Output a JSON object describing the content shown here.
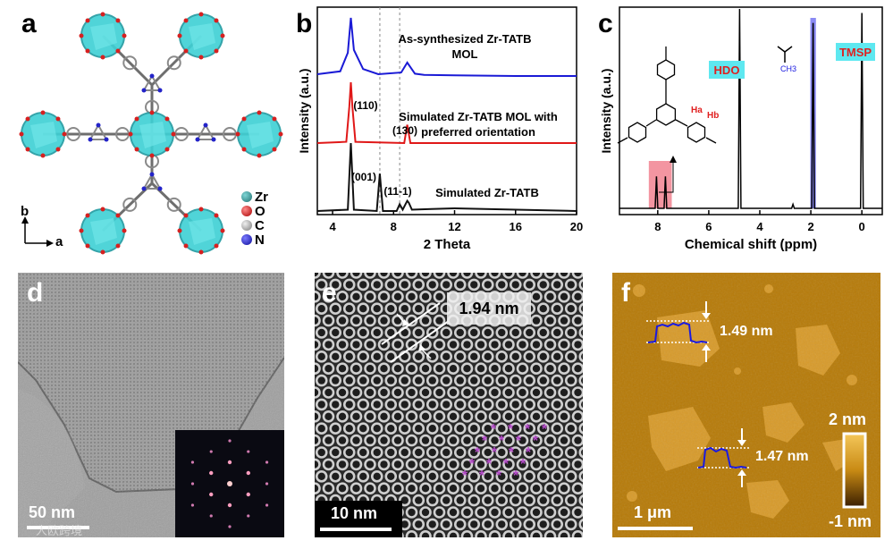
{
  "panels": {
    "a": {
      "label": "a",
      "legend": [
        {
          "sym": "Zr",
          "color": "#1f8c8c"
        },
        {
          "sym": "O",
          "color": "#d62020"
        },
        {
          "sym": "C",
          "color": "#a8a8a8"
        },
        {
          "sym": "N",
          "color": "#2323c8"
        }
      ],
      "axis_b": "b",
      "axis_a": "a"
    },
    "b": {
      "label": "b",
      "annotations": [
        "(110)",
        "(130)",
        "(001)",
        "(11-1)"
      ]
    },
    "c": {
      "label": "c",
      "hdo_label": "HDO",
      "tmsp_label": "TMSP",
      "ha_label": "Ha",
      "hb_label": "Hb"
    },
    "d": {
      "label": "d",
      "scale_label": "50 nm",
      "watermark": "人欧跨境"
    },
    "e": {
      "label": "e",
      "spacing_label": "1.94 nm",
      "scale_label": "10 nm"
    },
    "f": {
      "label": "f",
      "height1": "1.49 nm",
      "height2": "1.47 nm",
      "colorbar_top": "2 nm",
      "colorbar_bottom": "-1 nm",
      "scale_label": "1 μm"
    }
  },
  "chart_data": [
    {
      "type": "line",
      "panel": "b",
      "xlabel": "2 Theta",
      "ylabel": "Intensity (a.u.)",
      "xlim": [
        3,
        20
      ],
      "xticks": [
        4,
        8,
        12,
        16,
        20
      ],
      "series": [
        {
          "name": "As-synthesized Zr-TATB MOL",
          "color": "#1a1ad6",
          "x": [
            3,
            4.5,
            5.0,
            5.2,
            5.4,
            6,
            7,
            8.5,
            8.9,
            9.4,
            10,
            12,
            16,
            20
          ],
          "y": [
            0.03,
            0.08,
            0.4,
            1.0,
            0.45,
            0.12,
            0.03,
            0.06,
            0.23,
            0.04,
            0.02,
            0.01,
            0.0,
            0.0
          ]
        },
        {
          "name": "Simulated Zr-TATB MOL with preferred orientation",
          "color": "#e01818",
          "x": [
            3,
            4.9,
            5.1,
            5.2,
            5.3,
            5.5,
            8.7,
            8.9,
            9.1,
            20
          ],
          "y": [
            0.0,
            0.02,
            0.6,
            1.0,
            0.6,
            0.02,
            0.0,
            0.3,
            0.0,
            0.0
          ]
        },
        {
          "name": "Simulated Zr-TATB",
          "color": "#111111",
          "x": [
            3,
            5.0,
            5.2,
            5.4,
            6.9,
            7.1,
            7.3,
            8.2,
            8.4,
            8.6,
            8.9,
            9.0,
            9.2,
            10.5,
            12,
            14,
            20
          ],
          "y": [
            0.0,
            0.02,
            1.0,
            0.02,
            0.0,
            0.55,
            0.0,
            0.0,
            0.1,
            0.02,
            0.15,
            0.12,
            0.02,
            0.03,
            0.04,
            0.03,
            0.0
          ]
        }
      ],
      "annotations": [
        {
          "text": "(110)",
          "x": 5.3
        },
        {
          "text": "(130)",
          "x": 9.0
        },
        {
          "text": "(001)",
          "x": 7.1
        },
        {
          "text": "(11-1)",
          "x": 8.8
        }
      ],
      "reference_lines": [
        7.1,
        8.4
      ]
    },
    {
      "type": "line",
      "panel": "c",
      "xlabel": "Chemical shift (ppm)",
      "ylabel": "Intensity (a.u.)",
      "xlim": [
        9.5,
        -0.8
      ],
      "xticks": [
        8,
        6,
        4,
        2,
        0
      ],
      "peaks": [
        {
          "shift": 8.05,
          "h": 0.16
        },
        {
          "shift": 7.7,
          "h": 0.16
        },
        {
          "shift": 4.79,
          "h": 1.0
        },
        {
          "shift": 1.91,
          "h": 0.93
        },
        {
          "shift": 2.7,
          "h": 0.02
        },
        {
          "shift": 0.0,
          "h": 0.98
        }
      ],
      "highlights": [
        {
          "from": 8.35,
          "to": 7.45,
          "color": "#f07a8a"
        },
        {
          "from": 2.02,
          "to": 1.8,
          "color": "#6d6df0"
        }
      ]
    }
  ]
}
